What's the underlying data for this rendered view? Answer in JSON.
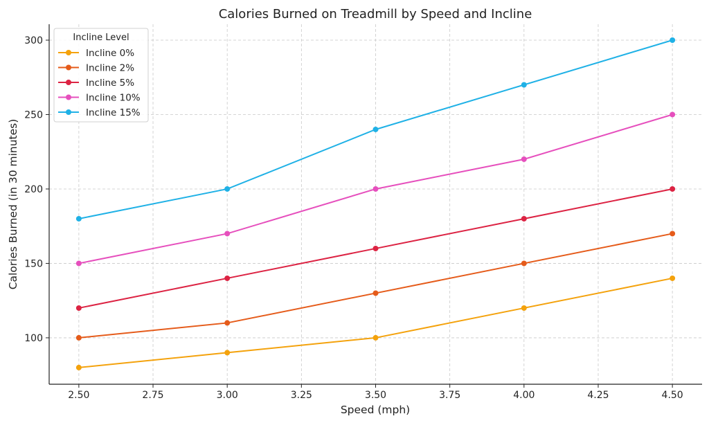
{
  "chart_data": {
    "type": "line",
    "title": "Calories Burned on Treadmill by Speed and Incline",
    "xlabel": "Speed (mph)",
    "ylabel": "Calories Burned (in 30 minutes)",
    "x": [
      2.5,
      3.0,
      3.5,
      4.0,
      4.5
    ],
    "xlim": [
      2.4,
      4.6
    ],
    "ylim": [
      68.8,
      310.7
    ],
    "xticks": [
      "2.50",
      "2.75",
      "3.00",
      "3.25",
      "3.50",
      "3.75",
      "4.00",
      "4.25",
      "4.50"
    ],
    "yticks": [
      "100",
      "150",
      "200",
      "250",
      "300"
    ],
    "grid": true,
    "legend": {
      "title": "Incline Level",
      "placement": "top-left"
    },
    "series": [
      {
        "name": "Incline 0%",
        "color": "#f4a20c",
        "values": [
          80,
          90,
          100,
          120,
          140
        ]
      },
      {
        "name": "Incline 2%",
        "color": "#e55b1a",
        "values": [
          100,
          110,
          130,
          150,
          170
        ]
      },
      {
        "name": "Incline 5%",
        "color": "#dc2343",
        "values": [
          120,
          140,
          160,
          180,
          200
        ]
      },
      {
        "name": "Incline 10%",
        "color": "#e64fbd",
        "values": [
          150,
          170,
          200,
          220,
          250
        ]
      },
      {
        "name": "Incline 15%",
        "color": "#1fb1e6",
        "values": [
          180,
          200,
          240,
          270,
          300
        ]
      }
    ]
  }
}
